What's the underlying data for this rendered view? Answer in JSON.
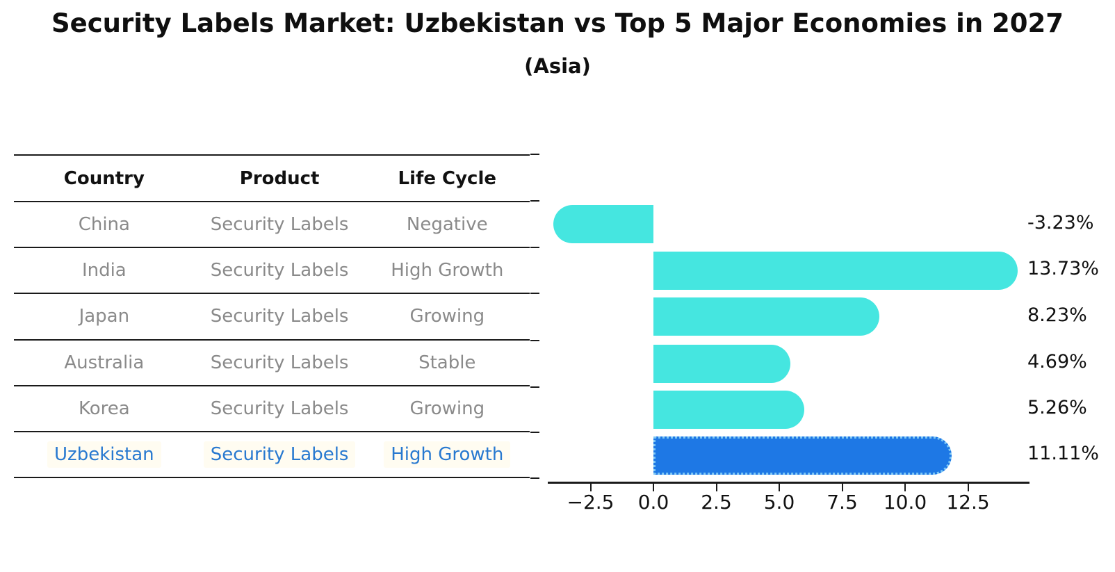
{
  "header": {
    "title": "Security Labels Market: Uzbekistan vs Top 5 Major Economies in 2027",
    "subtitle": "(Asia)"
  },
  "table": {
    "columns": [
      "Country",
      "Product",
      "Life Cycle"
    ],
    "rows": [
      {
        "country": "China",
        "product": "Security Labels",
        "life_cycle": "Negative",
        "highlight": false
      },
      {
        "country": "India",
        "product": "Security Labels",
        "life_cycle": "High Growth",
        "highlight": false
      },
      {
        "country": "Japan",
        "product": "Security Labels",
        "life_cycle": "Growing",
        "highlight": false
      },
      {
        "country": "Australia",
        "product": "Security Labels",
        "life_cycle": "Stable",
        "highlight": false
      },
      {
        "country": "Korea",
        "product": "Security Labels",
        "life_cycle": "Growing",
        "highlight": false
      },
      {
        "country": "Uzbekistan",
        "product": "Security Labels",
        "life_cycle": "High Growth",
        "highlight": true
      }
    ]
  },
  "chart_data": {
    "type": "bar",
    "orientation": "horizontal",
    "title": "Security Labels Market: Uzbekistan vs Top 5 Major Economies in 2027",
    "subtitle": "(Asia)",
    "categories": [
      "China",
      "India",
      "Japan",
      "Australia",
      "Korea",
      "Uzbekistan"
    ],
    "values": [
      -3.23,
      13.73,
      8.23,
      4.69,
      5.26,
      11.11
    ],
    "value_labels": [
      "-3.23%",
      "13.73%",
      "8.23%",
      "4.69%",
      "5.26%",
      "11.11%"
    ],
    "x_ticks": [
      -2.5,
      0.0,
      2.5,
      5.0,
      7.5,
      10.0,
      12.5
    ],
    "x_tick_labels": [
      "−2.5",
      "0.0",
      "2.5",
      "5.0",
      "7.5",
      "10.0",
      "12.5"
    ],
    "xlim": [
      -4.2,
      14.95
    ],
    "grid": false,
    "legend": null,
    "highlight_index": 5,
    "bar_color": "#45e6e0",
    "highlight_bar_color": "#1e78e5",
    "highlight_edge_color": "#7ec8f5"
  },
  "colors": {
    "accent_cyan": "#45e6e0",
    "accent_blue": "#1e78e5",
    "highlight_text": "#2879d0",
    "table_text_gray": "#8a8a8a",
    "axis_black": "#1a1a1a",
    "highlight_row_bg": "#fffcf1"
  }
}
